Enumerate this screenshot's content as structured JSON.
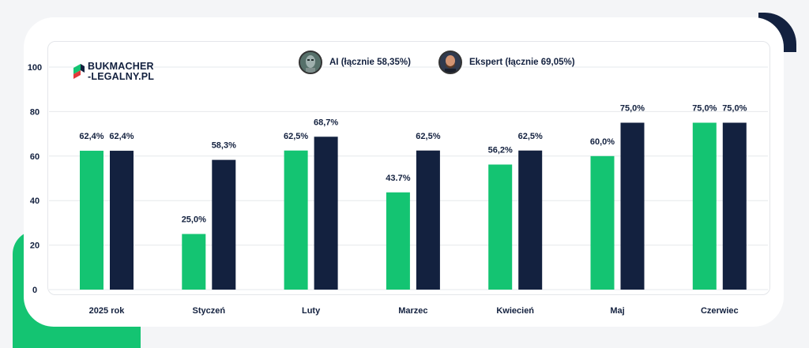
{
  "brand": {
    "line1": "BUKMACHER",
    "line2": "-LEGALNY.PL"
  },
  "colors": {
    "ai": "#14c472",
    "expert": "#13213f",
    "grid": "#e6e8ec",
    "label": "#13213f"
  },
  "legend": [
    {
      "label": "AI (łącznie 58,35%)",
      "icon": "robot-avatar-icon"
    },
    {
      "label": "Ekspert (łącznie 69,05%)",
      "icon": "expert-avatar-icon"
    }
  ],
  "chart_data": {
    "type": "bar",
    "categories": [
      "2025 rok",
      "Styczeń",
      "Luty",
      "Marzec",
      "Kwiecień",
      "Maj",
      "Czerwiec"
    ],
    "series": [
      {
        "name": "AI (łącznie 58,35%)",
        "values": [
          62.4,
          25.0,
          62.5,
          43.7,
          56.2,
          60.0,
          75.0
        ],
        "labels": [
          "62,4%",
          "25,0%",
          "62,5%",
          "43.7%",
          "56,2%",
          "60,0%",
          "75,0%"
        ]
      },
      {
        "name": "Ekspert (łącznie 69,05%)",
        "values": [
          62.4,
          58.3,
          68.7,
          62.5,
          62.5,
          75.0,
          75.0
        ],
        "labels": [
          "62,4%",
          "58,3%",
          "68,7%",
          "62,5%",
          "62,5%",
          "75,0%",
          "75,0%"
        ]
      }
    ],
    "yticks": [
      "0",
      "20",
      "40",
      "60",
      "80",
      "100"
    ],
    "ylim": [
      0,
      100
    ],
    "grid": true,
    "legend_position": "top-center"
  }
}
